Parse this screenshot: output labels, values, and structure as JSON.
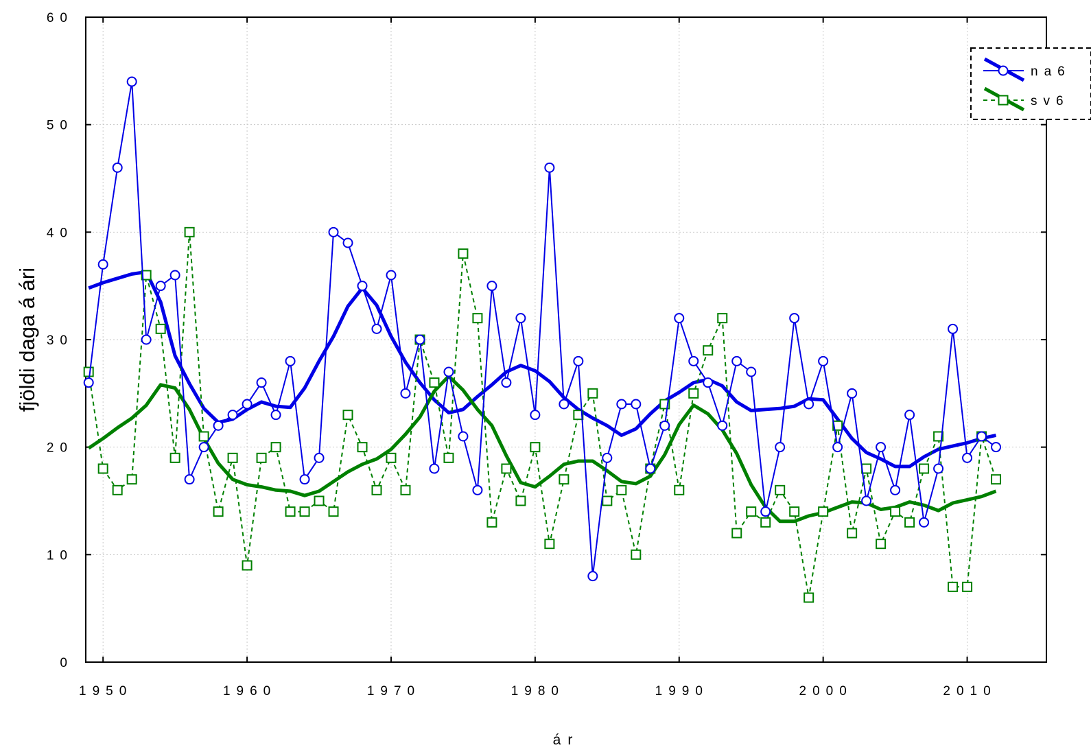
{
  "chart_data": {
    "type": "line",
    "title": "",
    "xlabel": "ár",
    "ylabel": "fjöldi daga á ári",
    "xlim": [
      1948.8,
      2015.5
    ],
    "ylim": [
      0,
      60
    ],
    "xticks": [
      1950,
      1960,
      1970,
      1980,
      1990,
      2000,
      2010
    ],
    "yticks": [
      0,
      10,
      20,
      30,
      40,
      50,
      60
    ],
    "grid": true,
    "legend_position": "top-right",
    "colors": {
      "na6": "#0000e6",
      "sv6": "#008000"
    },
    "x": [
      1949,
      1950,
      1951,
      1952,
      1953,
      1954,
      1955,
      1956,
      1957,
      1958,
      1959,
      1960,
      1961,
      1962,
      1963,
      1964,
      1965,
      1966,
      1967,
      1968,
      1969,
      1970,
      1971,
      1972,
      1973,
      1974,
      1975,
      1976,
      1977,
      1978,
      1979,
      1980,
      1981,
      1982,
      1983,
      1984,
      1985,
      1986,
      1987,
      1988,
      1989,
      1990,
      1991,
      1992,
      1993,
      1994,
      1995,
      1996,
      1997,
      1998,
      1999,
      2000,
      2001,
      2002,
      2003,
      2004,
      2005,
      2006,
      2007,
      2008,
      2009,
      2010,
      2011,
      2012
    ],
    "series": [
      {
        "name": "na6",
        "marker": "circle",
        "values": [
          26,
          37,
          46,
          54,
          30,
          35,
          36,
          17,
          20,
          22,
          23,
          24,
          26,
          23,
          28,
          17,
          19,
          40,
          39,
          35,
          31,
          36,
          25,
          30,
          18,
          27,
          21,
          16,
          35,
          26,
          32,
          23,
          46,
          24,
          28,
          8,
          19,
          24,
          24,
          18,
          22,
          32,
          28,
          26,
          22,
          28,
          27,
          14,
          20,
          32,
          24,
          28,
          20,
          25,
          15,
          20,
          16,
          23,
          13,
          18,
          31,
          19,
          21,
          20
        ],
        "smooth": [
          34.8,
          35.3,
          35.7,
          36.1,
          36.3,
          33.5,
          28.5,
          25.9,
          23.6,
          22.3,
          22.6,
          23.5,
          24.2,
          23.8,
          23.7,
          25.5,
          28.0,
          30.3,
          33.1,
          34.8,
          33.2,
          30.3,
          27.9,
          26.0,
          24.4,
          23.2,
          23.5,
          24.7,
          25.8,
          27.0,
          27.6,
          27.1,
          26.1,
          24.6,
          23.5,
          22.7,
          22.0,
          21.1,
          21.7,
          23.1,
          24.3,
          25.1,
          26.0,
          26.3,
          25.7,
          24.2,
          23.4,
          23.5,
          23.6,
          23.8,
          24.5,
          24.4,
          22.6,
          20.8,
          19.5,
          18.9,
          18.2,
          18.2,
          19.1,
          19.8,
          20.1,
          20.4,
          20.8,
          21.1
        ]
      },
      {
        "name": "sv6",
        "marker": "square",
        "values": [
          27,
          18,
          16,
          17,
          36,
          31,
          19,
          40,
          21,
          14,
          19,
          9,
          19,
          20,
          14,
          14,
          15,
          14,
          23,
          20,
          16,
          19,
          16,
          30,
          26,
          19,
          38,
          32,
          13,
          18,
          15,
          20,
          11,
          17,
          23,
          25,
          15,
          16,
          10,
          18,
          24,
          16,
          25,
          29,
          32,
          12,
          14,
          13,
          16,
          14,
          6,
          14,
          22,
          12,
          18,
          11,
          14,
          13,
          18,
          21,
          7,
          7,
          21,
          17
        ],
        "smooth": [
          19.9,
          20.8,
          21.8,
          22.7,
          23.9,
          25.8,
          25.5,
          23.5,
          20.8,
          18.5,
          17.0,
          16.5,
          16.3,
          16.0,
          15.9,
          15.5,
          15.9,
          16.8,
          17.7,
          18.4,
          18.9,
          19.8,
          21.2,
          22.8,
          25.2,
          26.6,
          25.3,
          23.5,
          22.0,
          19.2,
          16.7,
          16.3,
          17.3,
          18.4,
          18.7,
          18.7,
          17.8,
          16.8,
          16.6,
          17.3,
          19.3,
          22.1,
          23.9,
          23.1,
          21.6,
          19.4,
          16.5,
          14.4,
          13.1,
          13.1,
          13.6,
          13.9,
          14.4,
          14.9,
          14.8,
          14.2,
          14.4,
          14.9,
          14.6,
          14.1,
          14.8,
          15.1,
          15.4,
          15.9
        ]
      }
    ]
  }
}
